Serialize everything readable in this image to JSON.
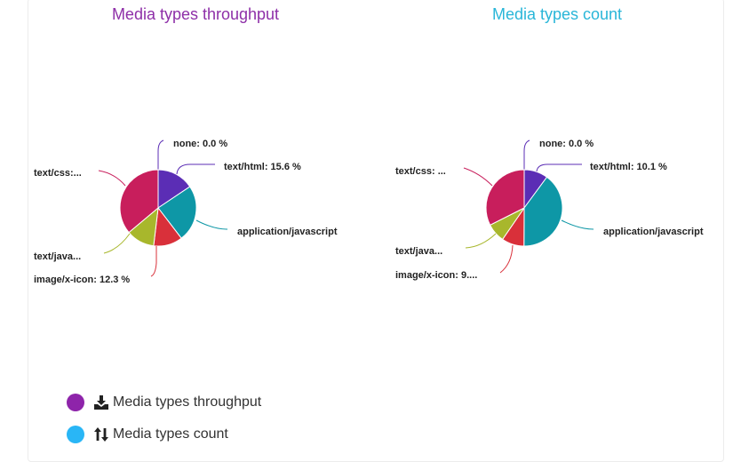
{
  "colors": {
    "none": "#5b2db5",
    "text/html": "#5b2db5",
    "application/javascript": "#0e97a6",
    "image/x-icon": "#d9303a",
    "text/javascript": "#a8b72c",
    "text/css": "#c81e5c"
  },
  "legend": [
    {
      "label": "Media types throughput",
      "color": "#8e24aa",
      "icon": "download-icon"
    },
    {
      "label": "Media types count",
      "color": "#29b6f6",
      "icon": "sort-arrows-icon"
    }
  ],
  "chart_data": [
    {
      "type": "pie",
      "title": "Media types throughput",
      "slices": [
        {
          "name": "none",
          "value": 0.0,
          "label": "none: 0.0 %"
        },
        {
          "name": "text/html",
          "value": 15.6,
          "label": "text/html: 15.6 %"
        },
        {
          "name": "application/javascript",
          "value": 24.0,
          "label": "application/javascript"
        },
        {
          "name": "image/x-icon",
          "value": 12.3,
          "label": "image/x-icon: 12.3 %"
        },
        {
          "name": "text/javascript",
          "value": 12.0,
          "label": "text/java..."
        },
        {
          "name": "text/css",
          "value": 36.1,
          "label": "text/css:..."
        }
      ]
    },
    {
      "type": "pie",
      "title": "Media types count",
      "slices": [
        {
          "name": "none",
          "value": 0.0,
          "label": "none: 0.0 %"
        },
        {
          "name": "text/html",
          "value": 10.1,
          "label": "text/html: 10.1 %"
        },
        {
          "name": "application/javascript",
          "value": 40.0,
          "label": "application/javascript"
        },
        {
          "name": "image/x-icon",
          "value": 9.5,
          "label": "image/x-icon: 9...."
        },
        {
          "name": "text/javascript",
          "value": 8.0,
          "label": "text/java..."
        },
        {
          "name": "text/css",
          "value": 32.4,
          "label": "text/css: ..."
        }
      ]
    }
  ]
}
